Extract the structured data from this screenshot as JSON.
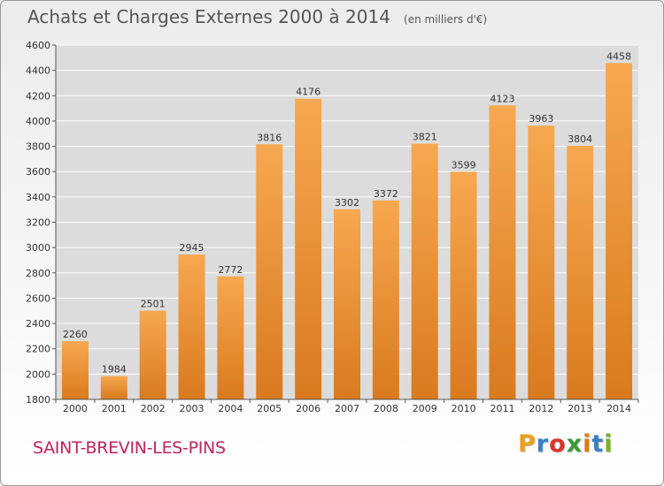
{
  "title": "Achats et Charges Externes 2000 à 2014",
  "unit": "(en milliers d'€)",
  "commune": "SAINT-BREVIN-LES-PINS",
  "logo": {
    "letters": [
      "P",
      "r",
      "o",
      "x",
      "i",
      "t",
      "i"
    ],
    "colors": [
      "#e8a020",
      "#3a7fc4",
      "#d9352a",
      "#3a9a3a",
      "#e07a10",
      "#3a7fc4",
      "#7ab020"
    ]
  },
  "chart_data": {
    "type": "bar",
    "categories": [
      "2000",
      "2001",
      "2002",
      "2003",
      "2004",
      "2005",
      "2006",
      "2007",
      "2008",
      "2009",
      "2010",
      "2011",
      "2012",
      "2013",
      "2014"
    ],
    "values": [
      2260,
      1984,
      2501,
      2945,
      2772,
      3816,
      4176,
      3302,
      3372,
      3821,
      3599,
      4123,
      3963,
      3804,
      4458
    ],
    "ylim": [
      1800,
      4600
    ],
    "yticks": [
      1800,
      2000,
      2200,
      2400,
      2600,
      2800,
      3000,
      3200,
      3400,
      3600,
      3800,
      4000,
      4200,
      4400,
      4600
    ],
    "grid": true,
    "bar_color_top": "#f7a850",
    "bar_color_bottom": "#d97a1e",
    "grid_color": "#ffffff",
    "plot_bg": "#dcdcdc"
  }
}
